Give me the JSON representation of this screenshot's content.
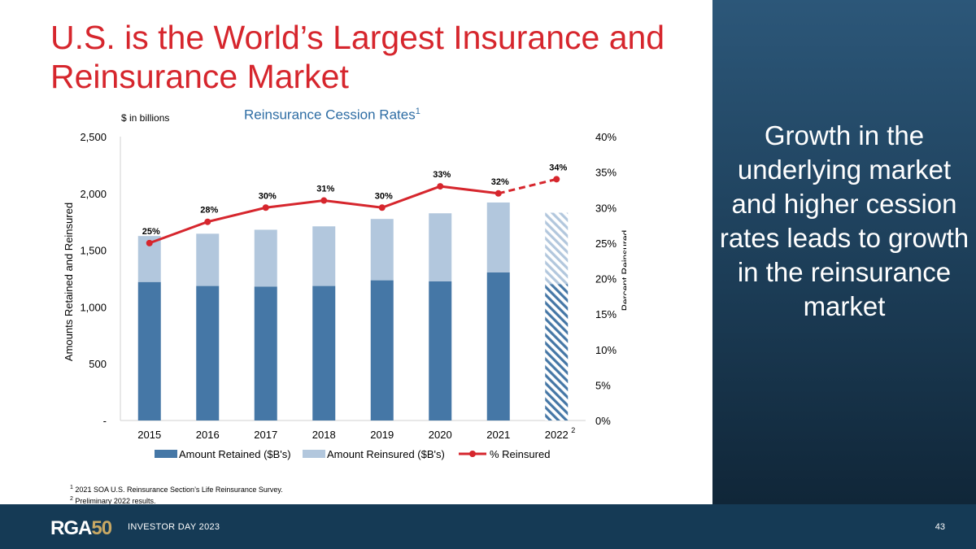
{
  "slide": {
    "title": "U.S. is the World’s Largest Insurance and Reinsurance Market",
    "side_text": "Growth in the underlying market and higher cession rates leads to growth in the reinsurance market",
    "units_label": "$ in billions",
    "chart_heading": "Reinsurance Cession Rates",
    "chart_heading_note": "1",
    "footnotes": [
      {
        "mark": "1",
        "text": "2021 SOA U.S. Reinsurance Section’s Life Reinsurance Survey."
      },
      {
        "mark": "2",
        "text": "Preliminary 2022 results."
      }
    ],
    "footer": {
      "logo_text": "RGA",
      "logo_number": "50",
      "label": "INVESTOR DAY 2023",
      "page_number": "43"
    }
  },
  "colors": {
    "title": "#d6262d",
    "retained": "#4577a6",
    "reinsured": "#b2c7dd",
    "line": "#d6262d",
    "panel": "#1f4563"
  },
  "chart_data": {
    "type": "bar",
    "title": "Reinsurance Cession Rates",
    "categories": [
      "2015",
      "2016",
      "2017",
      "2018",
      "2019",
      "2020",
      "2021",
      "2022"
    ],
    "category_notes": {
      "2022": "2"
    },
    "preliminary_category": "2022",
    "series": [
      {
        "name": "Amount Retained ($B's)",
        "kind": "stacked-bar",
        "axis": "left",
        "values": [
          1220,
          1185,
          1180,
          1185,
          1235,
          1225,
          1305,
          1200
        ]
      },
      {
        "name": "Amount Reinsured ($B's)",
        "kind": "stacked-bar",
        "axis": "left",
        "values": [
          405,
          460,
          500,
          525,
          540,
          600,
          615,
          630
        ]
      },
      {
        "name": "% Reinsured",
        "kind": "line",
        "axis": "right",
        "values": [
          25,
          28,
          30,
          31,
          30,
          33,
          32,
          34
        ],
        "labels": [
          "25%",
          "28%",
          "30%",
          "31%",
          "30%",
          "33%",
          "32%",
          "34%"
        ]
      }
    ],
    "ylabel_left": "Amounts Retained and Reinsured",
    "ylabel_right": "Percent Reinsured",
    "ylim_left": [
      0,
      2500
    ],
    "ylim_right": [
      0,
      40
    ],
    "yticks_left": [
      0,
      500,
      1000,
      1500,
      2000,
      2500
    ],
    "yticks_left_labels": [
      "-",
      "500",
      "1,000",
      "1,500",
      "2,000",
      "2,500"
    ],
    "yticks_right": [
      0,
      5,
      10,
      15,
      20,
      25,
      30,
      35,
      40
    ],
    "yticks_right_labels": [
      "0%",
      "5%",
      "10%",
      "15%",
      "20%",
      "25%",
      "30%",
      "35%",
      "40%"
    ],
    "legend": [
      "Amount Retained ($B's)",
      "Amount Reinsured ($B's)",
      "% Reinsured"
    ],
    "legend_position": "bottom",
    "grid": false
  }
}
